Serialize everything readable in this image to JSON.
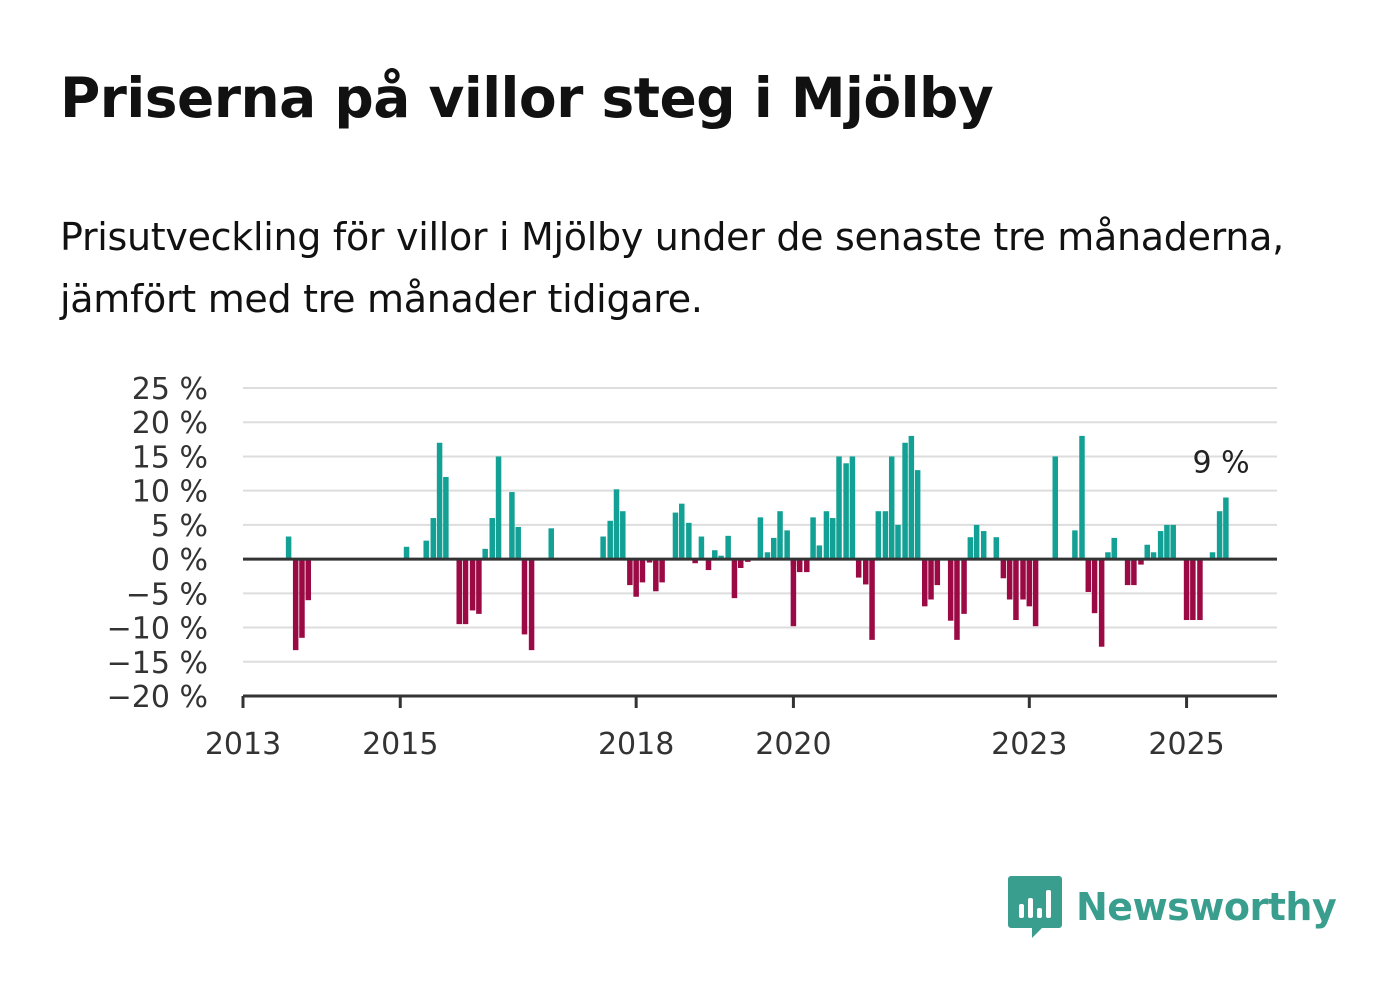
{
  "title": "Priserna på villor steg i Mjölby",
  "subtitle": "Prisutveckling för villor i Mjölby under de senaste tre månaderna, jämfört med tre månader tidigare.",
  "brand": {
    "name": "Newsworthy",
    "icon": "newsworthy-logo-icon",
    "color": "#3a9e8f"
  },
  "colors": {
    "positive": "#14a195",
    "negative": "#9b0a45",
    "grid": "#dddddd",
    "axis": "#333333"
  },
  "chart_data": {
    "type": "bar",
    "x_unit": "year (monthly bars)",
    "y_unit": "%",
    "ylim": [
      -20,
      25
    ],
    "xlim": [
      2013,
      2026.15
    ],
    "y_ticks": [
      25,
      20,
      15,
      10,
      5,
      0,
      -5,
      -10,
      -15,
      -20
    ],
    "y_tick_labels": [
      "25 %",
      "20 %",
      "15 %",
      "10 %",
      "5 %",
      "0 %",
      "−5 %",
      "−10 %",
      "−15 %",
      "−20 %"
    ],
    "x_ticks": [
      2013,
      2015,
      2018,
      2020,
      2023,
      2025
    ],
    "x_tick_labels": [
      "2013",
      "2015",
      "2018",
      "2020",
      "2023",
      "2025"
    ],
    "grid": true,
    "annotation": {
      "text": "9 %",
      "x": 2025.42,
      "y": 9
    },
    "bars": [
      {
        "x": 2013.58,
        "y": 3.3
      },
      {
        "x": 2013.67,
        "y": -13.3
      },
      {
        "x": 2013.75,
        "y": -11.5
      },
      {
        "x": 2013.83,
        "y": -6
      },
      {
        "x": 2015.08,
        "y": 1.8
      },
      {
        "x": 2015.33,
        "y": 2.7
      },
      {
        "x": 2015.42,
        "y": 6
      },
      {
        "x": 2015.5,
        "y": 17
      },
      {
        "x": 2015.58,
        "y": 12
      },
      {
        "x": 2015.75,
        "y": -9.5
      },
      {
        "x": 2015.83,
        "y": -9.5
      },
      {
        "x": 2015.92,
        "y": -7.5
      },
      {
        "x": 2016.0,
        "y": -8
      },
      {
        "x": 2016.08,
        "y": 1.5
      },
      {
        "x": 2016.17,
        "y": 6
      },
      {
        "x": 2016.25,
        "y": 15
      },
      {
        "x": 2016.42,
        "y": 9.8
      },
      {
        "x": 2016.5,
        "y": 4.7
      },
      {
        "x": 2016.58,
        "y": -11
      },
      {
        "x": 2016.67,
        "y": -13.3
      },
      {
        "x": 2016.92,
        "y": 4.5
      },
      {
        "x": 2017.58,
        "y": 3.3
      },
      {
        "x": 2017.67,
        "y": 5.6
      },
      {
        "x": 2017.75,
        "y": 10.2
      },
      {
        "x": 2017.83,
        "y": 7
      },
      {
        "x": 2017.92,
        "y": -3.8
      },
      {
        "x": 2018.0,
        "y": -5.5
      },
      {
        "x": 2018.08,
        "y": -3.4
      },
      {
        "x": 2018.17,
        "y": -0.5
      },
      {
        "x": 2018.25,
        "y": -4.7
      },
      {
        "x": 2018.33,
        "y": -3.4
      },
      {
        "x": 2018.5,
        "y": 6.8
      },
      {
        "x": 2018.58,
        "y": 8.1
      },
      {
        "x": 2018.67,
        "y": 5.3
      },
      {
        "x": 2018.75,
        "y": -0.6
      },
      {
        "x": 2018.83,
        "y": 3.3
      },
      {
        "x": 2018.92,
        "y": -1.6
      },
      {
        "x": 2019.0,
        "y": 1.3
      },
      {
        "x": 2019.08,
        "y": 0.5
      },
      {
        "x": 2019.17,
        "y": 3.4
      },
      {
        "x": 2019.25,
        "y": -5.7
      },
      {
        "x": 2019.33,
        "y": -1.3
      },
      {
        "x": 2019.42,
        "y": -0.4
      },
      {
        "x": 2019.58,
        "y": 6.1
      },
      {
        "x": 2019.67,
        "y": 1
      },
      {
        "x": 2019.75,
        "y": 3.1
      },
      {
        "x": 2019.83,
        "y": 7
      },
      {
        "x": 2019.92,
        "y": 4.2
      },
      {
        "x": 2020.0,
        "y": -1
      },
      {
        "x": 2020.0,
        "y": -9.8
      },
      {
        "x": 2020.08,
        "y": -1.9
      },
      {
        "x": 2020.17,
        "y": -1.9
      },
      {
        "x": 2020.25,
        "y": 6.1
      },
      {
        "x": 2020.33,
        "y": 2
      },
      {
        "x": 2020.42,
        "y": 7
      },
      {
        "x": 2020.5,
        "y": 6
      },
      {
        "x": 2020.58,
        "y": 15
      },
      {
        "x": 2020.67,
        "y": 14
      },
      {
        "x": 2020.75,
        "y": 15
      },
      {
        "x": 2020.83,
        "y": -2.7
      },
      {
        "x": 2020.92,
        "y": -3.7
      },
      {
        "x": 2021.0,
        "y": -11.8
      },
      {
        "x": 2021.08,
        "y": 7
      },
      {
        "x": 2021.17,
        "y": 7
      },
      {
        "x": 2021.25,
        "y": 15
      },
      {
        "x": 2021.33,
        "y": 5
      },
      {
        "x": 2021.42,
        "y": 17
      },
      {
        "x": 2021.5,
        "y": 18
      },
      {
        "x": 2021.58,
        "y": 13
      },
      {
        "x": 2021.67,
        "y": -6.9
      },
      {
        "x": 2021.75,
        "y": -5.9
      },
      {
        "x": 2021.83,
        "y": -3.8
      },
      {
        "x": 2022.0,
        "y": -9
      },
      {
        "x": 2022.08,
        "y": -11.8
      },
      {
        "x": 2022.17,
        "y": -8
      },
      {
        "x": 2022.25,
        "y": 3.2
      },
      {
        "x": 2022.33,
        "y": 5
      },
      {
        "x": 2022.42,
        "y": 4.1
      },
      {
        "x": 2022.58,
        "y": 3.2
      },
      {
        "x": 2022.67,
        "y": -2.8
      },
      {
        "x": 2022.75,
        "y": -5.9
      },
      {
        "x": 2022.83,
        "y": -8.9
      },
      {
        "x": 2022.92,
        "y": -5.9
      },
      {
        "x": 2023.0,
        "y": -6.9
      },
      {
        "x": 2023.08,
        "y": -9.8
      },
      {
        "x": 2023.33,
        "y": 15
      },
      {
        "x": 2023.58,
        "y": 4.2
      },
      {
        "x": 2023.67,
        "y": 18
      },
      {
        "x": 2023.75,
        "y": -4.8
      },
      {
        "x": 2023.83,
        "y": -7.9
      },
      {
        "x": 2023.92,
        "y": -12.8
      },
      {
        "x": 2024.0,
        "y": 1
      },
      {
        "x": 2024.08,
        "y": 3.1
      },
      {
        "x": 2024.25,
        "y": -3.8
      },
      {
        "x": 2024.33,
        "y": -3.8
      },
      {
        "x": 2024.42,
        "y": -0.8
      },
      {
        "x": 2024.5,
        "y": 2.1
      },
      {
        "x": 2024.58,
        "y": 1
      },
      {
        "x": 2024.67,
        "y": 4.1
      },
      {
        "x": 2024.75,
        "y": 5
      },
      {
        "x": 2024.83,
        "y": 5
      },
      {
        "x": 2025.0,
        "y": -8.9
      },
      {
        "x": 2025.08,
        "y": -8.9
      },
      {
        "x": 2025.17,
        "y": -8.9
      },
      {
        "x": 2025.33,
        "y": 1
      },
      {
        "x": 2025.42,
        "y": 7
      },
      {
        "x": 2025.5,
        "y": 9
      }
    ]
  }
}
